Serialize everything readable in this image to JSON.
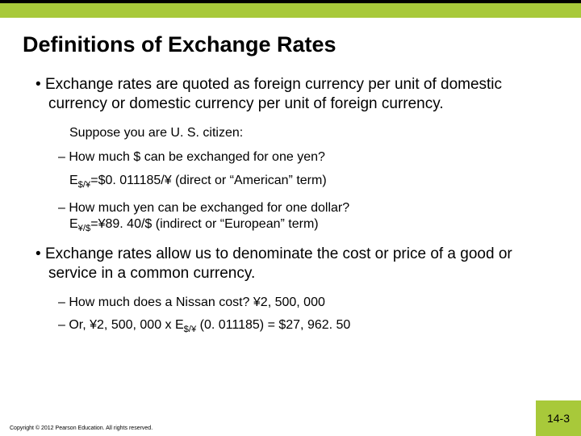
{
  "colors": {
    "accent": "#a8c93a",
    "text": "#000000",
    "background": "#ffffff"
  },
  "title": "Definitions of Exchange Rates",
  "bullet1": "Exchange rates are quoted as foreign currency per unit of domestic currency or domestic currency per unit of foreign currency.",
  "suppose": "Suppose you are U. S. citizen:",
  "q1": "How much $ can be exchanged for one yen?",
  "formula1_pre": "E",
  "formula1_sub": "$/¥",
  "formula1_post": "=$0. 011185/¥ (direct or “American” term)",
  "q2_line1": "How much yen can be exchanged for one dollar?",
  "q2_e": "E",
  "q2_sub": "¥/$",
  "q2_post": "=¥89. 40/$ (indirect or “European” term)",
  "bullet2": "Exchange rates allow us to denominate the cost or price of a good or service in a common currency.",
  "nissan1": "How much does a Nissan cost? ¥2, 500, 000",
  "nissan2_pre": "Or, ¥2, 500, 000 x E",
  "nissan2_sub": "$/¥",
  "nissan2_post": " (0. 011185) = $27, 962. 50",
  "copyright": "Copyright © 2012 Pearson Education. All rights reserved.",
  "pagenum": "14-3"
}
